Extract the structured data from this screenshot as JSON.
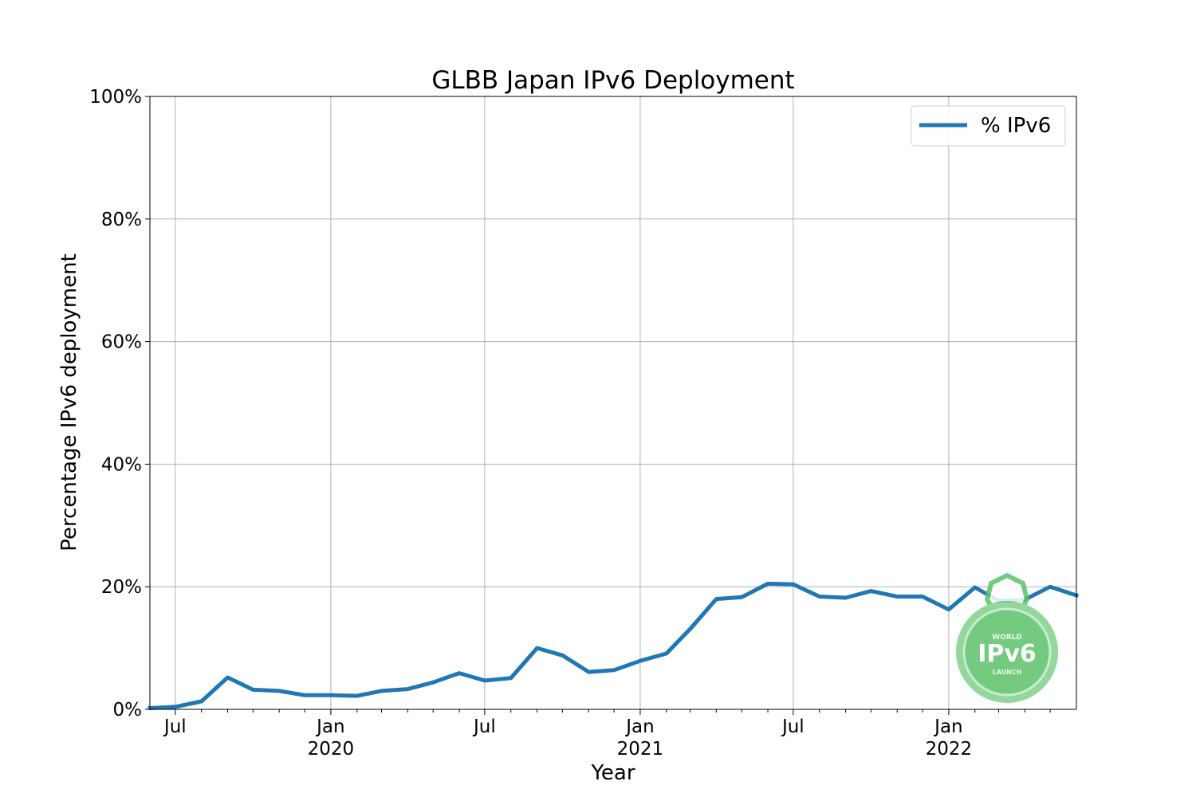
{
  "chart_data": {
    "type": "line",
    "title": "GLBB Japan IPv6 Deployment",
    "xlabel": "Year",
    "ylabel": "Percentage IPv6 deployment",
    "grid": true,
    "legend_position": "top-right",
    "xlim": [
      "2019-06-01",
      "2022-06-01"
    ],
    "ylim": [
      0,
      100
    ],
    "y_ticks": [
      0,
      20,
      40,
      60,
      80,
      100
    ],
    "y_tick_labels": [
      "0%",
      "20%",
      "40%",
      "60%",
      "80%",
      "100%"
    ],
    "x_major_ticks": [
      {
        "date": "2019-07-01",
        "label": "Jul",
        "year": ""
      },
      {
        "date": "2020-01-01",
        "label": "Jan",
        "year": "2020"
      },
      {
        "date": "2020-07-01",
        "label": "Jul",
        "year": ""
      },
      {
        "date": "2021-01-01",
        "label": "Jan",
        "year": "2021"
      },
      {
        "date": "2021-07-01",
        "label": "Jul",
        "year": ""
      },
      {
        "date": "2022-01-01",
        "label": "Jan",
        "year": "2022"
      }
    ],
    "x_minor_ticks": [
      "2019-08-01",
      "2019-09-01",
      "2019-10-01",
      "2019-11-01",
      "2019-12-01",
      "2020-02-01",
      "2020-03-01",
      "2020-04-01",
      "2020-05-01",
      "2020-06-01",
      "2020-08-01",
      "2020-09-01",
      "2020-10-01",
      "2020-11-01",
      "2020-12-01",
      "2021-02-01",
      "2021-03-01",
      "2021-04-01",
      "2021-05-01",
      "2021-06-01",
      "2021-08-01",
      "2021-09-01",
      "2021-10-01",
      "2021-11-01",
      "2021-12-01",
      "2022-02-01",
      "2022-03-01",
      "2022-04-01",
      "2022-05-01"
    ],
    "series": [
      {
        "name": "% IPv6",
        "color": "#1f77b4",
        "points": [
          {
            "x": "2019-06-01",
            "y": 0.2
          },
          {
            "x": "2019-07-01",
            "y": 0.4
          },
          {
            "x": "2019-08-01",
            "y": 1.3
          },
          {
            "x": "2019-09-01",
            "y": 5.2
          },
          {
            "x": "2019-10-01",
            "y": 3.2
          },
          {
            "x": "2019-11-01",
            "y": 3.0
          },
          {
            "x": "2019-12-01",
            "y": 2.3
          },
          {
            "x": "2020-01-01",
            "y": 2.3
          },
          {
            "x": "2020-02-01",
            "y": 2.2
          },
          {
            "x": "2020-03-01",
            "y": 3.0
          },
          {
            "x": "2020-04-01",
            "y": 3.3
          },
          {
            "x": "2020-05-01",
            "y": 4.4
          },
          {
            "x": "2020-06-01",
            "y": 5.9
          },
          {
            "x": "2020-07-01",
            "y": 4.7
          },
          {
            "x": "2020-08-01",
            "y": 5.1
          },
          {
            "x": "2020-09-01",
            "y": 10.0
          },
          {
            "x": "2020-10-01",
            "y": 8.8
          },
          {
            "x": "2020-11-01",
            "y": 6.1
          },
          {
            "x": "2020-12-01",
            "y": 6.4
          },
          {
            "x": "2021-01-01",
            "y": 7.9
          },
          {
            "x": "2021-02-01",
            "y": 9.1
          },
          {
            "x": "2021-03-01",
            "y": 13.1
          },
          {
            "x": "2021-04-01",
            "y": 18.0
          },
          {
            "x": "2021-05-01",
            "y": 18.3
          },
          {
            "x": "2021-06-01",
            "y": 20.5
          },
          {
            "x": "2021-07-01",
            "y": 20.4
          },
          {
            "x": "2021-08-01",
            "y": 18.4
          },
          {
            "x": "2021-09-01",
            "y": 18.2
          },
          {
            "x": "2021-10-01",
            "y": 19.3
          },
          {
            "x": "2021-11-01",
            "y": 18.4
          },
          {
            "x": "2021-12-01",
            "y": 18.4
          },
          {
            "x": "2022-01-01",
            "y": 16.3
          },
          {
            "x": "2022-02-01",
            "y": 19.9
          },
          {
            "x": "2022-03-01",
            "y": 17.7
          },
          {
            "x": "2022-04-01",
            "y": 17.9
          },
          {
            "x": "2022-05-01",
            "y": 20.0
          },
          {
            "x": "2022-06-01",
            "y": 18.6
          }
        ]
      }
    ]
  },
  "watermark": {
    "top_text": "WORLD",
    "main_text": "IPv6",
    "bottom_text": "LAUNCH",
    "color": "#5cc26b"
  }
}
